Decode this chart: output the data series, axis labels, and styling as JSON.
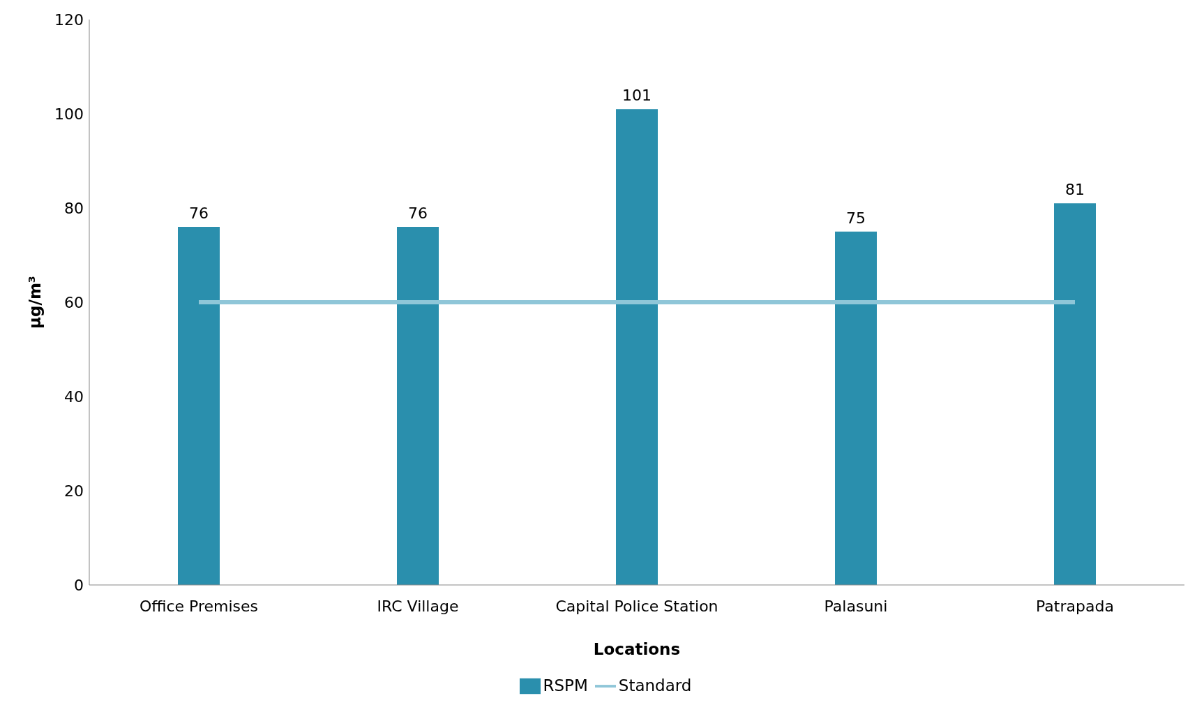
{
  "chart_data": {
    "type": "bar",
    "xlabel": "Locations",
    "ylabel": "µg/m³",
    "categories": [
      "Office Premises",
      "IRC Village",
      "Capital Police Station",
      "Palasuni",
      "Patrapada"
    ],
    "series": [
      {
        "name": "RSPM",
        "color": "#2a8fad",
        "values": [
          76,
          76,
          101,
          75,
          81
        ],
        "value_labels": [
          "76",
          "76",
          "101",
          "75",
          "81"
        ]
      },
      {
        "name": "Standard",
        "type": "line",
        "color": "#8fc6d8",
        "values": [
          60,
          60,
          60,
          60,
          60
        ]
      }
    ],
    "ylim": [
      0,
      120
    ],
    "yticks": [
      0,
      20,
      40,
      60,
      80,
      100,
      120
    ],
    "grid": false,
    "legend": "bottom",
    "marker": "none",
    "line_style": "solid"
  }
}
